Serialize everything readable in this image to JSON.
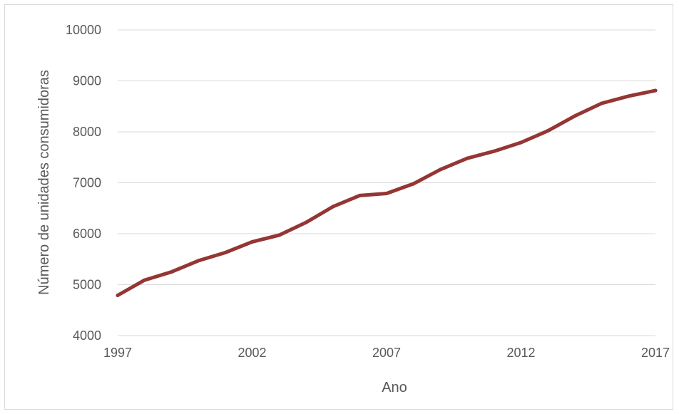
{
  "chart_data": {
    "type": "line",
    "title": "",
    "xlabel": "Ano",
    "ylabel": "Número de unidades consumidoras",
    "xlim": [
      1997,
      2017
    ],
    "ylim": [
      4000,
      10000
    ],
    "x_ticks": [
      "1997",
      "2002",
      "2007",
      "2012",
      "2017"
    ],
    "y_ticks": [
      "4000",
      "5000",
      "6000",
      "7000",
      "8000",
      "9000",
      "10000"
    ],
    "grid": true,
    "legend": "none",
    "series": [
      {
        "color": "#943634",
        "x": [
          1997,
          1998,
          1999,
          2000,
          2001,
          2002,
          2003,
          2004,
          2005,
          2006,
          2007,
          2008,
          2009,
          2010,
          2011,
          2012,
          2013,
          2014,
          2015,
          2016,
          2017
        ],
        "values": [
          4790,
          5090,
          5250,
          5470,
          5630,
          5840,
          5970,
          6220,
          6530,
          6750,
          6790,
          6980,
          7260,
          7480,
          7620,
          7790,
          8020,
          8310,
          8560,
          8700,
          8810
        ]
      }
    ]
  }
}
